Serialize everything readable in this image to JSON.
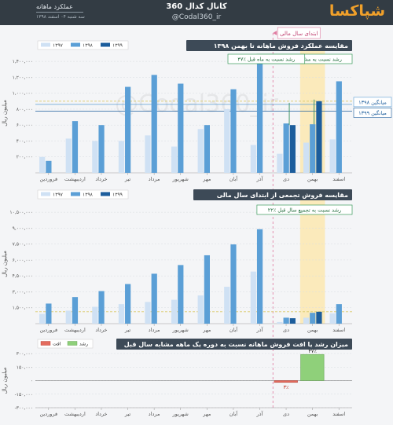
{
  "header": {
    "logo": "شپاکسا",
    "channel_title": "کانال کدال 360",
    "channel_handle": "@Codal360_ir",
    "report_label": "عملکرد ماهانه",
    "date_label": "سه شنبه ۰۴ اسفند ۱۳۹۸"
  },
  "watermark": "@Codal360_ir",
  "fy_label": "ابتدای سال مالی",
  "chart_data": [
    {
      "type": "bar",
      "title": "مقایسه عملکرد فروش ماهانه تا بهمن ۱۳۹۸",
      "ylabel": "میلیون ریال",
      "categories": [
        "فروردین",
        "اردیبهشت",
        "خرداد",
        "تیر",
        "مرداد",
        "شهریور",
        "مهر",
        "آبان",
        "آذر",
        "دی",
        "بهمن",
        "اسفند"
      ],
      "series": [
        {
          "name": "۱۳۹۷",
          "color": "#cfe1f4",
          "values": [
            200000,
            430000,
            400000,
            400000,
            470000,
            330000,
            550000,
            800000,
            350000,
            240000,
            380000,
            420000
          ]
        },
        {
          "name": "۱۳۹۸",
          "color": "#5b9fd6",
          "values": [
            150000,
            650000,
            600000,
            1080000,
            1230000,
            1120000,
            600000,
            1050000,
            1410000,
            620000,
            610000,
            1150000
          ]
        },
        {
          "name": "۱۳۹۹",
          "color": "#1c5d9c",
          "values": [
            null,
            null,
            null,
            null,
            null,
            null,
            null,
            null,
            null,
            600000,
            900000,
            null
          ]
        }
      ],
      "yticks": [
        "۲۰۰,۰۰۰",
        "۴۰۰,۰۰۰",
        "۶۰۰,۰۰۰",
        "۸۰۰,۰۰۰",
        "۱,۰۰۰,۰۰۰",
        "۱,۲۰۰,۰۰۰",
        "۱,۴۰۰,۰۰۰"
      ],
      "ylim": [
        0,
        1500000
      ],
      "mean_lines": [
        {
          "label": "میانگین ۱۳۹۸",
          "value": 860000,
          "color": "#5b9fd6"
        },
        {
          "label": "میانگین ۱۳۹۹",
          "value": 775000,
          "color": "#1c5d9c"
        }
      ],
      "mean_line_extra": {
        "value": 900000,
        "color": "#d9c96a"
      },
      "annotations": [
        {
          "text": "۴۷٪ رشد نسبت به مشابه سال قبل",
          "category": "بهمن"
        },
        {
          "text": "۴۷٪ رشد نسبت به ماه قبل",
          "category": "دی"
        }
      ]
    },
    {
      "type": "bar",
      "title": "مقایسه فروش تجمعی از ابتدای سال مالی",
      "ylabel": "میلیون ریال",
      "categories": [
        "فروردین",
        "اردیبهشت",
        "خرداد",
        "تیر",
        "مرداد",
        "شهریور",
        "مهر",
        "آبان",
        "آذر",
        "دی",
        "بهمن",
        "اسفند"
      ],
      "series": [
        {
          "name": "۱۳۹۷",
          "color": "#cfe1f4",
          "values": [
            900000,
            1200000,
            1550000,
            1800000,
            2000000,
            2200000,
            2600000,
            3400000,
            4800000,
            150000,
            550000,
            950000
          ]
        },
        {
          "name": "۱۳۹۸",
          "color": "#5b9fd6",
          "values": [
            1850000,
            2450000,
            3000000,
            3650000,
            4600000,
            5400000,
            6300000,
            7300000,
            8700000,
            550000,
            1000000,
            1800000
          ]
        },
        {
          "name": "۱۳۹۹",
          "color": "#1c5d9c",
          "values": [
            null,
            null,
            null,
            null,
            null,
            null,
            null,
            null,
            null,
            500000,
            1100000,
            null
          ]
        }
      ],
      "yticks": [
        "۱,۵۰۰,۰۰۰",
        "۳,۰۰۰,۰۰۰",
        "۴,۵۰۰,۰۰۰",
        "۶,۰۰۰,۰۰۰",
        "۷,۵۰۰,۰۰۰",
        "۹,۰۰۰,۰۰۰",
        "۱۰,۵۰۰,۰۰۰"
      ],
      "ylim": [
        0,
        11000000
      ],
      "mean_line_extra": {
        "value": 1100000,
        "color": "#d9c96a"
      },
      "annotations": [
        {
          "text": "۲۲٪ رشد نسبت به تجمیع سال قبل",
          "category": "بهمن"
        }
      ]
    },
    {
      "type": "bar",
      "title": "میزان رشد یا افت فروش ماهانه نسبت به دوره یک ماهه مشابه سال قبل",
      "ylabel": "میلیون ریال",
      "categories": [
        "فروردین",
        "اردیبهشت",
        "خرداد",
        "تیر",
        "مرداد",
        "شهریور",
        "مهر",
        "آبان",
        "آذر",
        "دی",
        "بهمن",
        "اسفند"
      ],
      "series": [
        {
          "name": "افت",
          "color": "#e46b5e",
          "values": [
            null,
            null,
            null,
            null,
            null,
            null,
            null,
            null,
            null,
            -20000,
            null,
            null
          ]
        },
        {
          "name": "رشد",
          "color": "#8fd07a",
          "values": [
            null,
            null,
            null,
            null,
            null,
            null,
            null,
            null,
            null,
            null,
            290000,
            null
          ]
        }
      ],
      "data_labels": {
        "دی": "۳٪",
        "بهمن": "۴۷٪"
      },
      "yticks": [
        "-۳۰۰,۰۰۰",
        "-۱۵۰,۰۰۰",
        "۰",
        "۱۵۰,۰۰۰",
        "۳۰۰,۰۰۰"
      ],
      "ylim": [
        -300000,
        300000
      ]
    }
  ]
}
